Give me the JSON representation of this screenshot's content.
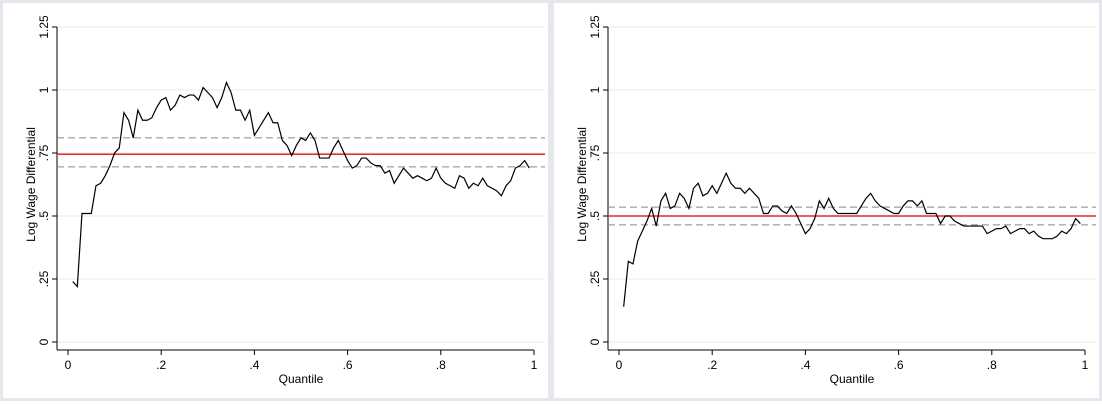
{
  "chart_data": [
    {
      "type": "line",
      "xlabel": "Quantile",
      "ylabel": "Log Wage Differential",
      "xlim": [
        0,
        1
      ],
      "ylim": [
        0,
        1.25
      ],
      "xticks": [
        0,
        {
          "value": 0.2,
          "label": ".2"
        },
        {
          "value": 0.4,
          "label": ".4"
        },
        {
          "value": 0.6,
          "label": ".6"
        },
        {
          "value": 0.8,
          "label": ".8"
        },
        1
      ],
      "yticks": [
        0,
        {
          "value": 0.25,
          "label": ".25"
        },
        {
          "value": 0.5,
          "label": ".5"
        },
        {
          "value": 0.75,
          "label": ".75"
        },
        1,
        1.25
      ],
      "grid": true,
      "x": [
        0.01,
        0.02,
        0.03,
        0.04,
        0.05,
        0.06,
        0.07,
        0.08,
        0.09,
        0.1,
        0.11,
        0.12,
        0.13,
        0.14,
        0.15,
        0.16,
        0.17,
        0.18,
        0.19,
        0.2,
        0.21,
        0.22,
        0.23,
        0.24,
        0.25,
        0.26,
        0.27,
        0.28,
        0.29,
        0.3,
        0.31,
        0.32,
        0.33,
        0.34,
        0.35,
        0.36,
        0.37,
        0.38,
        0.39,
        0.4,
        0.41,
        0.42,
        0.43,
        0.44,
        0.45,
        0.46,
        0.47,
        0.48,
        0.49,
        0.5,
        0.51,
        0.52,
        0.53,
        0.54,
        0.55,
        0.56,
        0.57,
        0.58,
        0.59,
        0.6,
        0.61,
        0.62,
        0.63,
        0.64,
        0.65,
        0.66,
        0.67,
        0.68,
        0.69,
        0.7,
        0.71,
        0.72,
        0.73,
        0.74,
        0.75,
        0.76,
        0.77,
        0.78,
        0.79,
        0.8,
        0.81,
        0.82,
        0.83,
        0.84,
        0.85,
        0.86,
        0.87,
        0.88,
        0.89,
        0.9,
        0.91,
        0.92,
        0.93,
        0.94,
        0.95,
        0.96,
        0.97,
        0.98,
        0.99
      ],
      "series": [
        {
          "color": "#000000",
          "values": [
            0.24,
            0.22,
            0.51,
            0.51,
            0.51,
            0.62,
            0.63,
            0.66,
            0.7,
            0.75,
            0.77,
            0.91,
            0.88,
            0.81,
            0.92,
            0.88,
            0.88,
            0.89,
            0.93,
            0.96,
            0.97,
            0.92,
            0.94,
            0.98,
            0.97,
            0.98,
            0.98,
            0.96,
            1.01,
            0.99,
            0.97,
            0.93,
            0.97,
            1.03,
            0.99,
            0.92,
            0.92,
            0.88,
            0.92,
            0.82,
            0.85,
            0.88,
            0.91,
            0.87,
            0.87,
            0.8,
            0.78,
            0.74,
            0.78,
            0.81,
            0.8,
            0.83,
            0.8,
            0.73,
            0.73,
            0.73,
            0.77,
            0.8,
            0.76,
            0.72,
            0.69,
            0.7,
            0.73,
            0.73,
            0.71,
            0.7,
            0.7,
            0.67,
            0.68,
            0.63,
            0.66,
            0.69,
            0.67,
            0.65,
            0.66,
            0.65,
            0.64,
            0.65,
            0.69,
            0.65,
            0.63,
            0.62,
            0.61,
            0.66,
            0.65,
            0.61,
            0.63,
            0.62,
            0.65,
            0.62,
            0.61,
            0.6,
            0.58,
            0.62,
            0.64,
            0.69,
            0.7,
            0.72,
            0.69
          ]
        }
      ],
      "reference_lines": [
        {
          "value": 0.745,
          "color": "#e8282b",
          "dashed": false
        },
        {
          "value": 0.81,
          "color": "#888888",
          "dashed": true
        },
        {
          "value": 0.695,
          "color": "#888888",
          "dashed": true
        }
      ]
    },
    {
      "type": "line",
      "xlabel": "Quantile",
      "ylabel": "Log Wage Differential",
      "xlim": [
        0,
        1
      ],
      "ylim": [
        0,
        1.25
      ],
      "xticks": [
        0,
        {
          "value": 0.2,
          "label": ".2"
        },
        {
          "value": 0.4,
          "label": ".4"
        },
        {
          "value": 0.6,
          "label": ".6"
        },
        {
          "value": 0.8,
          "label": ".8"
        },
        1
      ],
      "yticks": [
        0,
        {
          "value": 0.25,
          "label": ".25"
        },
        {
          "value": 0.5,
          "label": ".5"
        },
        {
          "value": 0.75,
          "label": ".75"
        },
        1,
        1.25
      ],
      "grid": true,
      "x": [
        0.01,
        0.02,
        0.03,
        0.04,
        0.05,
        0.06,
        0.07,
        0.08,
        0.09,
        0.1,
        0.11,
        0.12,
        0.13,
        0.14,
        0.15,
        0.16,
        0.17,
        0.18,
        0.19,
        0.2,
        0.21,
        0.22,
        0.23,
        0.24,
        0.25,
        0.26,
        0.27,
        0.28,
        0.29,
        0.3,
        0.31,
        0.32,
        0.33,
        0.34,
        0.35,
        0.36,
        0.37,
        0.38,
        0.39,
        0.4,
        0.41,
        0.42,
        0.43,
        0.44,
        0.45,
        0.46,
        0.47,
        0.48,
        0.49,
        0.5,
        0.51,
        0.52,
        0.53,
        0.54,
        0.55,
        0.56,
        0.57,
        0.58,
        0.59,
        0.6,
        0.61,
        0.62,
        0.63,
        0.64,
        0.65,
        0.66,
        0.67,
        0.68,
        0.69,
        0.7,
        0.71,
        0.72,
        0.73,
        0.74,
        0.75,
        0.76,
        0.77,
        0.78,
        0.79,
        0.8,
        0.81,
        0.82,
        0.83,
        0.84,
        0.85,
        0.86,
        0.87,
        0.88,
        0.89,
        0.9,
        0.91,
        0.92,
        0.93,
        0.94,
        0.95,
        0.96,
        0.97,
        0.98,
        0.99
      ],
      "series": [
        {
          "color": "#000000",
          "values": [
            0.14,
            0.32,
            0.31,
            0.4,
            0.44,
            0.48,
            0.53,
            0.46,
            0.56,
            0.59,
            0.53,
            0.54,
            0.59,
            0.57,
            0.53,
            0.61,
            0.63,
            0.58,
            0.59,
            0.62,
            0.59,
            0.63,
            0.67,
            0.63,
            0.61,
            0.61,
            0.59,
            0.61,
            0.59,
            0.57,
            0.51,
            0.51,
            0.54,
            0.54,
            0.52,
            0.51,
            0.54,
            0.51,
            0.47,
            0.43,
            0.45,
            0.49,
            0.56,
            0.53,
            0.57,
            0.53,
            0.51,
            0.51,
            0.51,
            0.51,
            0.51,
            0.54,
            0.57,
            0.59,
            0.56,
            0.54,
            0.53,
            0.52,
            0.51,
            0.51,
            0.54,
            0.56,
            0.56,
            0.54,
            0.56,
            0.51,
            0.51,
            0.51,
            0.47,
            0.5,
            0.5,
            0.48,
            0.47,
            0.46,
            0.46,
            0.46,
            0.46,
            0.46,
            0.43,
            0.44,
            0.45,
            0.45,
            0.46,
            0.43,
            0.44,
            0.45,
            0.45,
            0.43,
            0.44,
            0.42,
            0.41,
            0.41,
            0.41,
            0.42,
            0.44,
            0.43,
            0.45,
            0.49,
            0.47
          ]
        }
      ],
      "reference_lines": [
        {
          "value": 0.5,
          "color": "#e8282b",
          "dashed": false
        },
        {
          "value": 0.535,
          "color": "#888888",
          "dashed": true
        },
        {
          "value": 0.465,
          "color": "#888888",
          "dashed": true
        }
      ]
    }
  ]
}
